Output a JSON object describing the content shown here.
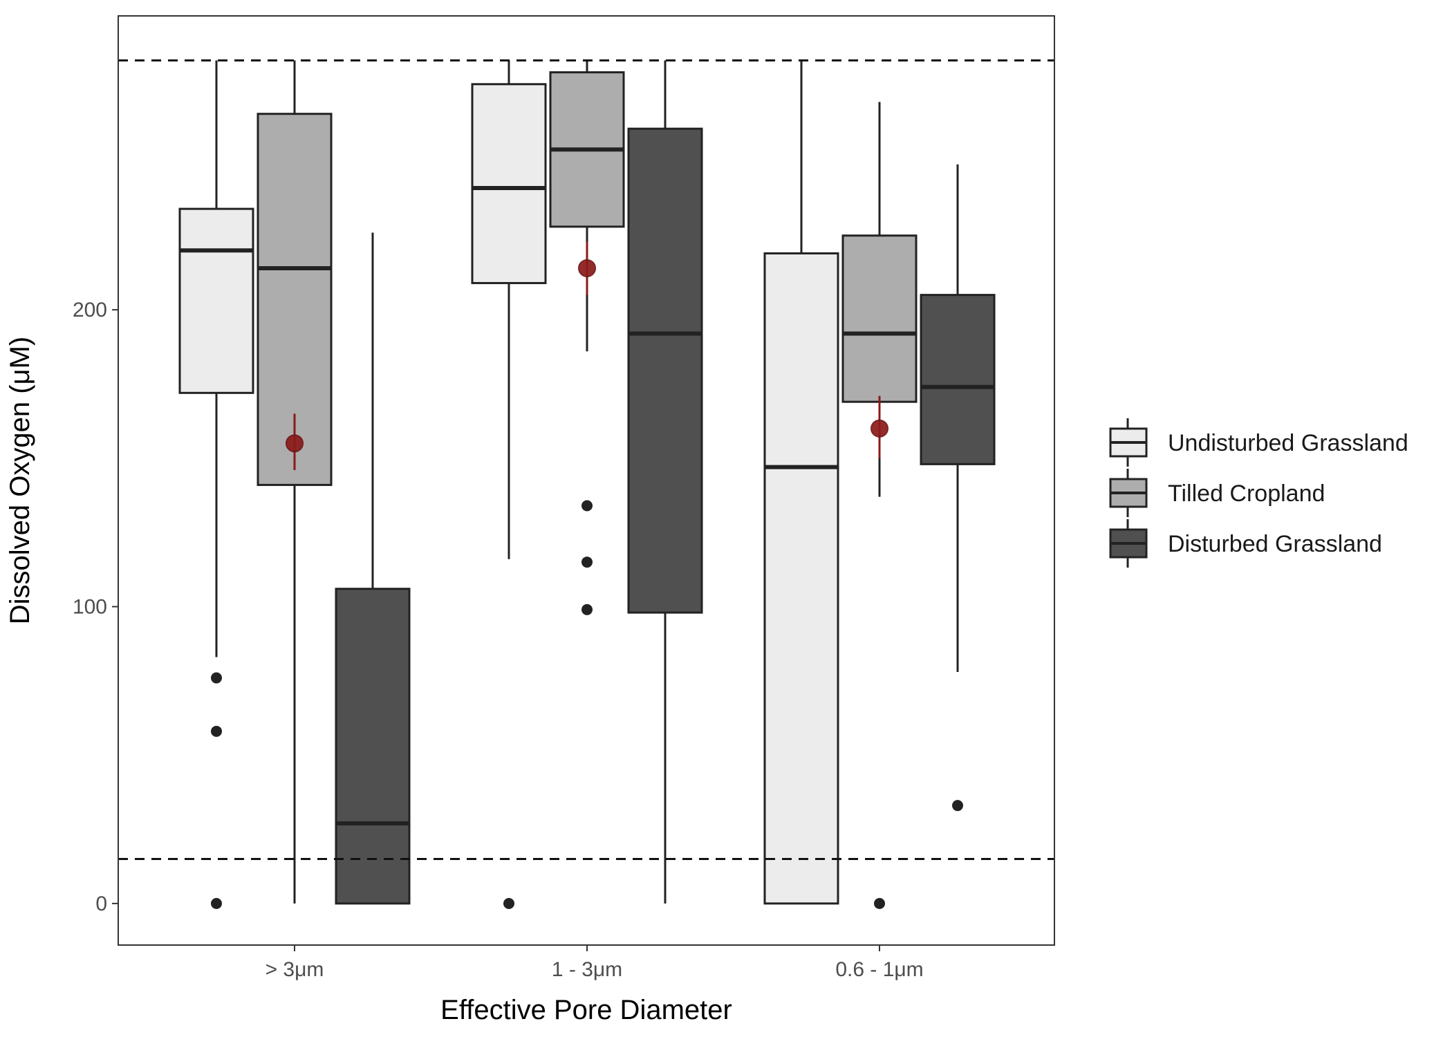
{
  "chart_data": {
    "type": "boxplot",
    "title": "",
    "xlabel": "Effective Pore Diameter",
    "ylabel": "Dissolved Oxygen (μM)",
    "ylim": [
      -14,
      299
    ],
    "yticks": [
      0,
      100,
      200
    ],
    "grid": false,
    "legend_position": "right",
    "categories": [
      "> 3μm",
      "1 - 3μm",
      "0.6 - 1μm"
    ],
    "reference_lines": [
      284,
      15
    ],
    "series": [
      {
        "name": "Undisturbed Grassland",
        "color": "#ececec",
        "boxes": [
          {
            "whisker_low": 83,
            "q1": 172,
            "median": 220,
            "q3": 234,
            "whisker_high": 284,
            "outliers": [
              76,
              58,
              0
            ]
          },
          {
            "whisker_low": 116,
            "q1": 209,
            "median": 241,
            "q3": 276,
            "whisker_high": 284,
            "outliers": [
              0
            ]
          },
          {
            "whisker_low": 0,
            "q1": 0,
            "median": 147,
            "q3": 219,
            "whisker_high": 284,
            "outliers": []
          }
        ]
      },
      {
        "name": "Tilled Cropland",
        "color": "#adadad",
        "boxes": [
          {
            "whisker_low": 0,
            "q1": 141,
            "median": 214,
            "q3": 266,
            "whisker_high": 284,
            "outliers": []
          },
          {
            "whisker_low": 186,
            "q1": 228,
            "median": 254,
            "q3": 280,
            "whisker_high": 284,
            "outliers": [
              134,
              115,
              99
            ]
          },
          {
            "whisker_low": 137,
            "q1": 169,
            "median": 192,
            "q3": 225,
            "whisker_high": 270,
            "outliers": [
              0
            ]
          }
        ]
      },
      {
        "name": "Disturbed Grassland",
        "color": "#505050",
        "boxes": [
          {
            "whisker_low": 0,
            "q1": 0,
            "median": 27,
            "q3": 106,
            "whisker_high": 226,
            "outliers": []
          },
          {
            "whisker_low": 0,
            "q1": 98,
            "median": 192,
            "q3": 261,
            "whisker_high": 284,
            "outliers": []
          },
          {
            "whisker_low": 78,
            "q1": 148,
            "median": 174,
            "q3": 205,
            "whisker_high": 249,
            "outliers": [
              33
            ]
          }
        ]
      }
    ],
    "mean_markers": {
      "color": "#8b1a1a",
      "series": "Tilled Cropland",
      "points": [
        {
          "category_index": 0,
          "mean": 155,
          "err_low": 146,
          "err_high": 165
        },
        {
          "category_index": 1,
          "mean": 214,
          "err_low": 205,
          "err_high": 223
        },
        {
          "category_index": 2,
          "mean": 160,
          "err_low": 150,
          "err_high": 171
        }
      ]
    }
  }
}
